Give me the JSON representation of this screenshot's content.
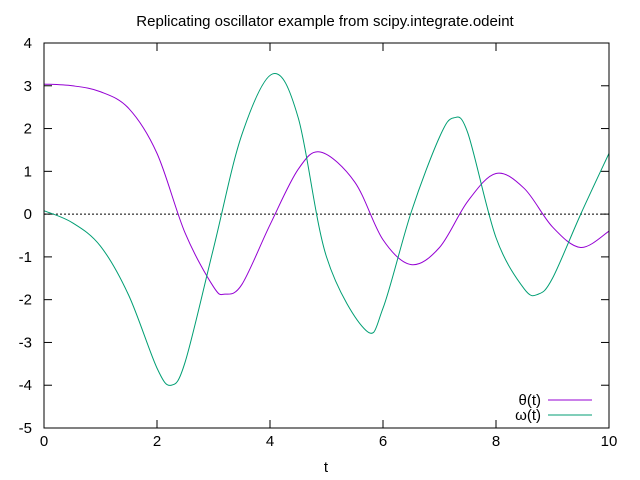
{
  "chart_data": {
    "type": "line",
    "title": "Replicating oscillator example from scipy.integrate.odeint",
    "xlabel": "t",
    "ylabel": "",
    "xlim": [
      0,
      10
    ],
    "ylim": [
      -5,
      4
    ],
    "x_ticks": [
      0,
      2,
      4,
      6,
      8,
      10
    ],
    "y_ticks": [
      -5,
      -4,
      -3,
      -2,
      -1,
      0,
      1,
      2,
      3,
      4
    ],
    "grid": false,
    "zero_line": true,
    "legend_position": "bottom-right",
    "series": [
      {
        "name": "θ(t)",
        "color": "#9400d3",
        "x": [
          0,
          0.5,
          1.0,
          1.5,
          2.0,
          2.5,
          3.0,
          3.2,
          3.5,
          4.0,
          4.5,
          4.9,
          5.5,
          6.0,
          6.5,
          7.0,
          7.5,
          8.0,
          8.5,
          9.0,
          9.5,
          10.0
        ],
        "y": [
          3.04,
          3.0,
          2.86,
          2.47,
          1.42,
          -0.45,
          -1.7,
          -1.87,
          -1.65,
          -0.25,
          1.05,
          1.45,
          0.75,
          -0.6,
          -1.18,
          -0.78,
          0.3,
          0.95,
          0.6,
          -0.3,
          -0.78,
          -0.4
        ]
      },
      {
        "name": "ω(t)",
        "color": "#009e73",
        "x": [
          0,
          0.5,
          1.0,
          1.5,
          2.0,
          2.25,
          2.5,
          3.0,
          3.5,
          4.05,
          4.5,
          5.0,
          5.7,
          6.0,
          6.5,
          7.0,
          7.25,
          7.5,
          8.0,
          8.5,
          8.75,
          9.0,
          9.5,
          10.0
        ],
        "y": [
          0.08,
          -0.2,
          -0.75,
          -1.9,
          -3.6,
          -4.0,
          -3.45,
          -0.8,
          1.85,
          3.28,
          2.25,
          -1.0,
          -2.72,
          -2.2,
          0.05,
          1.8,
          2.25,
          1.9,
          -0.55,
          -1.75,
          -1.87,
          -1.5,
          0.0,
          1.42
        ]
      }
    ]
  }
}
